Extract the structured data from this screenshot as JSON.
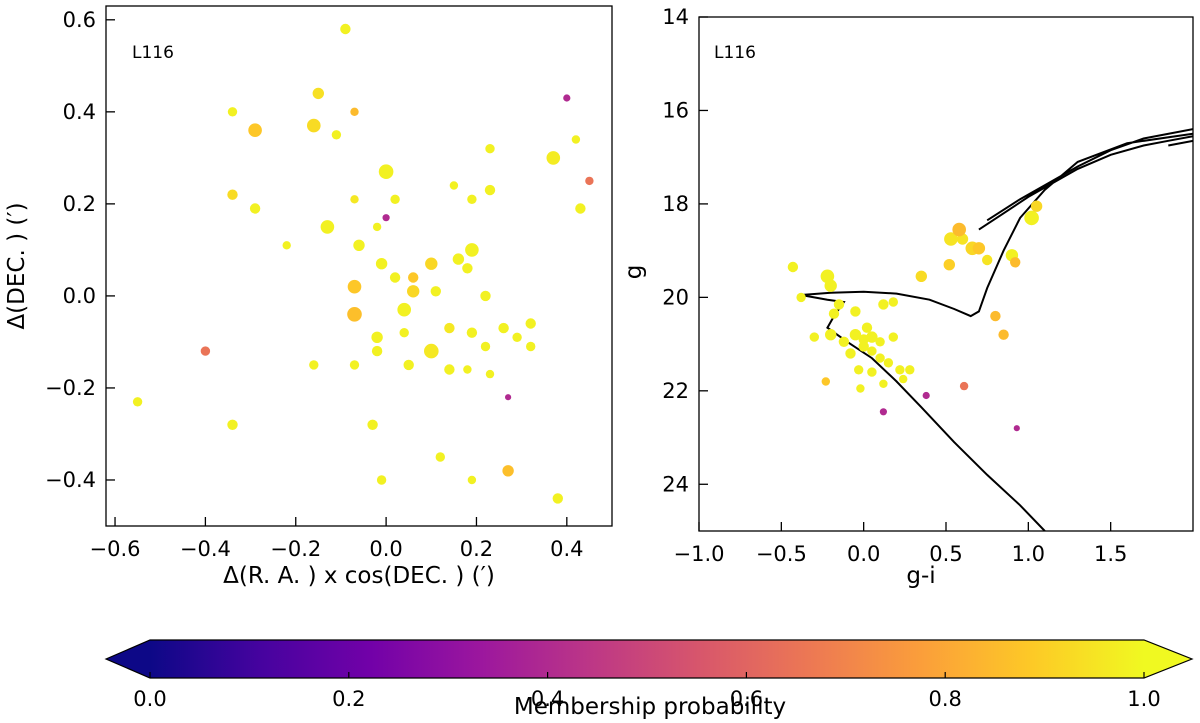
{
  "chart_data": [
    {
      "type": "scatter",
      "panel_label": "L116",
      "xlabel": "Δ(R. A. ) x cos(DEC. ) (′)",
      "ylabel": "Δ(DEC. ) (′)",
      "xlim": [
        -0.62,
        0.5
      ],
      "ylim": [
        -0.5,
        0.63
      ],
      "xticks": [
        -0.6,
        -0.4,
        -0.2,
        0.0,
        0.2,
        0.4
      ],
      "xtick_labels": [
        "−0.6",
        "−0.4",
        "−0.2",
        "0.0",
        "0.2",
        "0.4"
      ],
      "yticks": [
        -0.4,
        -0.2,
        0.0,
        0.2,
        0.4,
        0.6
      ],
      "ytick_labels": [
        "−0.4",
        "−0.2",
        "0.0",
        "0.2",
        "0.4",
        "0.6"
      ],
      "color_encodes": "membership probability",
      "points": [
        {
          "x": -0.09,
          "y": 0.58,
          "p": 0.98,
          "s": 1.0
        },
        {
          "x": -0.34,
          "y": 0.4,
          "p": 0.98,
          "s": 0.9
        },
        {
          "x": -0.29,
          "y": 0.36,
          "p": 0.88,
          "s": 1.3
        },
        {
          "x": -0.15,
          "y": 0.44,
          "p": 0.94,
          "s": 1.1
        },
        {
          "x": -0.16,
          "y": 0.37,
          "p": 0.93,
          "s": 1.3
        },
        {
          "x": -0.07,
          "y": 0.4,
          "p": 0.85,
          "s": 0.8
        },
        {
          "x": -0.11,
          "y": 0.35,
          "p": 0.98,
          "s": 0.9
        },
        {
          "x": 0.4,
          "y": 0.43,
          "p": 0.4,
          "s": 0.7
        },
        {
          "x": 0.42,
          "y": 0.34,
          "p": 0.98,
          "s": 0.8
        },
        {
          "x": 0.45,
          "y": 0.25,
          "p": 0.65,
          "s": 0.8
        },
        {
          "x": 0.37,
          "y": 0.3,
          "p": 0.97,
          "s": 1.3
        },
        {
          "x": 0.43,
          "y": 0.19,
          "p": 0.98,
          "s": 1.0
        },
        {
          "x": 0.23,
          "y": 0.32,
          "p": 0.98,
          "s": 0.9
        },
        {
          "x": 0.23,
          "y": 0.23,
          "p": 0.98,
          "s": 1.0
        },
        {
          "x": 0.0,
          "y": 0.27,
          "p": 0.98,
          "s": 1.4
        },
        {
          "x": -0.34,
          "y": 0.22,
          "p": 0.93,
          "s": 1.0
        },
        {
          "x": -0.29,
          "y": 0.19,
          "p": 0.98,
          "s": 1.0
        },
        {
          "x": -0.07,
          "y": 0.21,
          "p": 0.96,
          "s": 0.8
        },
        {
          "x": 0.02,
          "y": 0.21,
          "p": 0.98,
          "s": 0.9
        },
        {
          "x": 0.15,
          "y": 0.24,
          "p": 0.98,
          "s": 0.8
        },
        {
          "x": 0.19,
          "y": 0.21,
          "p": 0.98,
          "s": 0.9
        },
        {
          "x": 0.0,
          "y": 0.17,
          "p": 0.4,
          "s": 0.7
        },
        {
          "x": -0.02,
          "y": 0.15,
          "p": 0.98,
          "s": 0.8
        },
        {
          "x": -0.13,
          "y": 0.15,
          "p": 0.98,
          "s": 1.3
        },
        {
          "x": -0.06,
          "y": 0.11,
          "p": 0.98,
          "s": 1.1
        },
        {
          "x": -0.22,
          "y": 0.11,
          "p": 0.98,
          "s": 0.8
        },
        {
          "x": 0.19,
          "y": 0.1,
          "p": 0.98,
          "s": 1.3
        },
        {
          "x": 0.16,
          "y": 0.08,
          "p": 0.98,
          "s": 1.1
        },
        {
          "x": -0.01,
          "y": 0.07,
          "p": 0.98,
          "s": 1.1
        },
        {
          "x": 0.1,
          "y": 0.07,
          "p": 0.92,
          "s": 1.2
        },
        {
          "x": 0.02,
          "y": 0.04,
          "p": 0.98,
          "s": 1.0
        },
        {
          "x": 0.06,
          "y": 0.04,
          "p": 0.88,
          "s": 1.0
        },
        {
          "x": 0.18,
          "y": 0.06,
          "p": 0.98,
          "s": 1.0
        },
        {
          "x": -0.07,
          "y": 0.02,
          "p": 0.88,
          "s": 1.3
        },
        {
          "x": 0.06,
          "y": 0.01,
          "p": 0.92,
          "s": 1.2
        },
        {
          "x": 0.11,
          "y": 0.01,
          "p": 0.98,
          "s": 1.0
        },
        {
          "x": 0.22,
          "y": 0.0,
          "p": 0.98,
          "s": 1.0
        },
        {
          "x": -0.07,
          "y": -0.04,
          "p": 0.86,
          "s": 1.4
        },
        {
          "x": 0.04,
          "y": -0.03,
          "p": 0.98,
          "s": 1.3
        },
        {
          "x": 0.14,
          "y": -0.07,
          "p": 0.96,
          "s": 1.0
        },
        {
          "x": 0.26,
          "y": -0.07,
          "p": 0.98,
          "s": 1.0
        },
        {
          "x": 0.32,
          "y": -0.06,
          "p": 0.98,
          "s": 1.0
        },
        {
          "x": -0.02,
          "y": -0.09,
          "p": 0.98,
          "s": 1.1
        },
        {
          "x": 0.04,
          "y": -0.08,
          "p": 0.98,
          "s": 0.9
        },
        {
          "x": 0.19,
          "y": -0.08,
          "p": 0.98,
          "s": 1.0
        },
        {
          "x": 0.29,
          "y": -0.09,
          "p": 0.98,
          "s": 0.9
        },
        {
          "x": 0.22,
          "y": -0.11,
          "p": 0.98,
          "s": 0.9
        },
        {
          "x": 0.32,
          "y": -0.11,
          "p": 0.98,
          "s": 0.9
        },
        {
          "x": -0.02,
          "y": -0.12,
          "p": 0.98,
          "s": 1.0
        },
        {
          "x": 0.1,
          "y": -0.12,
          "p": 0.96,
          "s": 1.4
        },
        {
          "x": -0.4,
          "y": -0.12,
          "p": 0.65,
          "s": 0.9
        },
        {
          "x": -0.16,
          "y": -0.15,
          "p": 0.98,
          "s": 0.9
        },
        {
          "x": -0.07,
          "y": -0.15,
          "p": 0.98,
          "s": 0.9
        },
        {
          "x": 0.05,
          "y": -0.15,
          "p": 0.98,
          "s": 1.0
        },
        {
          "x": 0.14,
          "y": -0.16,
          "p": 0.98,
          "s": 1.0
        },
        {
          "x": 0.18,
          "y": -0.16,
          "p": 0.98,
          "s": 0.8
        },
        {
          "x": 0.23,
          "y": -0.17,
          "p": 0.98,
          "s": 0.8
        },
        {
          "x": 0.27,
          "y": -0.22,
          "p": 0.4,
          "s": 0.6
        },
        {
          "x": -0.55,
          "y": -0.23,
          "p": 0.98,
          "s": 0.9
        },
        {
          "x": -0.34,
          "y": -0.28,
          "p": 0.98,
          "s": 1.0
        },
        {
          "x": -0.03,
          "y": -0.28,
          "p": 0.98,
          "s": 1.0
        },
        {
          "x": 0.12,
          "y": -0.35,
          "p": 0.98,
          "s": 0.9
        },
        {
          "x": 0.27,
          "y": -0.38,
          "p": 0.86,
          "s": 1.1
        },
        {
          "x": -0.01,
          "y": -0.4,
          "p": 0.98,
          "s": 0.9
        },
        {
          "x": 0.19,
          "y": -0.4,
          "p": 0.98,
          "s": 0.8
        },
        {
          "x": 0.38,
          "y": -0.44,
          "p": 0.98,
          "s": 1.0
        }
      ]
    },
    {
      "type": "scatter",
      "panel_label": "L116",
      "xlabel": "g-i",
      "ylabel": "g",
      "xlim": [
        -1.0,
        2.0
      ],
      "ylim": [
        25,
        14
      ],
      "y_inverted": true,
      "xticks": [
        -1.0,
        -0.5,
        0.0,
        0.5,
        1.0,
        1.5
      ],
      "xtick_labels": [
        "−1.0",
        "−0.5",
        "0.0",
        "0.5",
        "1.0",
        "1.5"
      ],
      "yticks": [
        14,
        16,
        18,
        20,
        22,
        24
      ],
      "ytick_labels": [
        "14",
        "16",
        "18",
        "20",
        "22",
        "24"
      ],
      "color_encodes": "membership probability",
      "isochrone": [
        [
          0.7,
          18.55
        ],
        [
          0.85,
          18.2
        ],
        [
          1.0,
          17.85
        ],
        [
          1.15,
          17.55
        ],
        [
          1.3,
          17.25
        ],
        [
          1.5,
          16.95
        ],
        [
          1.7,
          16.75
        ],
        [
          1.85,
          16.65
        ],
        [
          2.0,
          16.55
        ],
        null,
        [
          0.75,
          18.35
        ],
        [
          0.95,
          17.9
        ],
        [
          1.1,
          17.6
        ],
        [
          1.3,
          17.2
        ],
        [
          1.5,
          16.85
        ],
        [
          1.7,
          16.6
        ],
        [
          2.0,
          16.4
        ],
        null,
        [
          -0.38,
          19.95
        ],
        [
          -0.2,
          19.9
        ],
        [
          0.0,
          19.88
        ],
        [
          0.2,
          19.92
        ],
        [
          0.4,
          20.05
        ],
        [
          0.55,
          20.25
        ],
        [
          0.65,
          20.4
        ],
        [
          0.7,
          20.3
        ],
        [
          0.75,
          19.8
        ],
        [
          0.85,
          19.0
        ],
        [
          0.95,
          18.3
        ],
        [
          1.1,
          17.7
        ],
        [
          1.3,
          17.1
        ],
        [
          1.6,
          16.7
        ],
        [
          2.0,
          16.5
        ],
        null,
        [
          -0.38,
          19.95
        ],
        [
          -0.22,
          20.05
        ],
        [
          -0.12,
          20.1
        ],
        [
          -0.18,
          20.4
        ],
        [
          -0.22,
          20.65
        ],
        [
          -0.1,
          20.95
        ],
        [
          0.05,
          21.3
        ],
        [
          0.2,
          21.8
        ],
        [
          0.35,
          22.35
        ],
        [
          0.55,
          23.1
        ],
        [
          0.75,
          23.8
        ],
        [
          0.95,
          24.45
        ],
        [
          1.1,
          25.0
        ],
        null,
        [
          1.85,
          16.75
        ],
        [
          2.0,
          16.65
        ]
      ],
      "points": [
        {
          "x": -0.43,
          "y": 19.35,
          "p": 0.98,
          "s": 1.0
        },
        {
          "x": -0.38,
          "y": 20.0,
          "p": 0.98,
          "s": 0.9
        },
        {
          "x": -0.22,
          "y": 19.55,
          "p": 0.98,
          "s": 1.3
        },
        {
          "x": -0.2,
          "y": 19.75,
          "p": 0.98,
          "s": 1.2
        },
        {
          "x": -0.15,
          "y": 20.15,
          "p": 0.98,
          "s": 1.0
        },
        {
          "x": -0.18,
          "y": 20.35,
          "p": 0.98,
          "s": 1.0
        },
        {
          "x": -0.05,
          "y": 20.3,
          "p": 0.98,
          "s": 1.0
        },
        {
          "x": -0.3,
          "y": 20.85,
          "p": 0.98,
          "s": 0.9
        },
        {
          "x": -0.2,
          "y": 20.8,
          "p": 0.98,
          "s": 1.1
        },
        {
          "x": -0.12,
          "y": 20.95,
          "p": 0.98,
          "s": 1.0
        },
        {
          "x": -0.05,
          "y": 20.8,
          "p": 0.98,
          "s": 1.1
        },
        {
          "x": 0.0,
          "y": 20.9,
          "p": 0.98,
          "s": 1.0
        },
        {
          "x": 0.05,
          "y": 20.85,
          "p": 0.98,
          "s": 1.1
        },
        {
          "x": 0.1,
          "y": 20.95,
          "p": 0.98,
          "s": 0.9
        },
        {
          "x": 0.18,
          "y": 20.85,
          "p": 0.98,
          "s": 0.9
        },
        {
          "x": 0.12,
          "y": 20.15,
          "p": 0.98,
          "s": 1.0
        },
        {
          "x": 0.18,
          "y": 20.1,
          "p": 0.98,
          "s": 0.9
        },
        {
          "x": 0.02,
          "y": 20.65,
          "p": 0.98,
          "s": 1.0
        },
        {
          "x": -0.08,
          "y": 21.2,
          "p": 0.98,
          "s": 1.0
        },
        {
          "x": 0.0,
          "y": 21.05,
          "p": 0.98,
          "s": 1.0
        },
        {
          "x": 0.05,
          "y": 21.15,
          "p": 0.98,
          "s": 0.9
        },
        {
          "x": 0.1,
          "y": 21.3,
          "p": 0.98,
          "s": 0.9
        },
        {
          "x": 0.15,
          "y": 21.4,
          "p": 0.98,
          "s": 0.9
        },
        {
          "x": -0.03,
          "y": 21.55,
          "p": 0.98,
          "s": 0.9
        },
        {
          "x": 0.05,
          "y": 21.6,
          "p": 0.98,
          "s": 0.9
        },
        {
          "x": 0.22,
          "y": 21.55,
          "p": 0.98,
          "s": 0.9
        },
        {
          "x": 0.28,
          "y": 21.55,
          "p": 0.98,
          "s": 0.9
        },
        {
          "x": 0.24,
          "y": 21.75,
          "p": 0.98,
          "s": 0.8
        },
        {
          "x": 0.12,
          "y": 21.85,
          "p": 0.98,
          "s": 0.8
        },
        {
          "x": -0.02,
          "y": 21.95,
          "p": 0.98,
          "s": 0.8
        },
        {
          "x": -0.23,
          "y": 21.8,
          "p": 0.88,
          "s": 0.8
        },
        {
          "x": 0.12,
          "y": 22.45,
          "p": 0.4,
          "s": 0.7
        },
        {
          "x": 0.38,
          "y": 22.1,
          "p": 0.4,
          "s": 0.7
        },
        {
          "x": 0.61,
          "y": 21.9,
          "p": 0.65,
          "s": 0.8
        },
        {
          "x": 0.93,
          "y": 22.8,
          "p": 0.4,
          "s": 0.6
        },
        {
          "x": 0.35,
          "y": 19.55,
          "p": 0.93,
          "s": 1.1
        },
        {
          "x": 0.52,
          "y": 19.3,
          "p": 0.9,
          "s": 1.1
        },
        {
          "x": 0.53,
          "y": 18.75,
          "p": 0.95,
          "s": 1.3
        },
        {
          "x": 0.58,
          "y": 18.55,
          "p": 0.85,
          "s": 1.3
        },
        {
          "x": 0.6,
          "y": 18.75,
          "p": 0.95,
          "s": 1.1
        },
        {
          "x": 0.66,
          "y": 18.95,
          "p": 0.92,
          "s": 1.3
        },
        {
          "x": 0.7,
          "y": 18.95,
          "p": 0.88,
          "s": 1.2
        },
        {
          "x": 0.75,
          "y": 19.2,
          "p": 0.95,
          "s": 1.0
        },
        {
          "x": 0.8,
          "y": 20.4,
          "p": 0.85,
          "s": 1.0
        },
        {
          "x": 0.85,
          "y": 20.8,
          "p": 0.85,
          "s": 1.0
        },
        {
          "x": 0.9,
          "y": 19.1,
          "p": 0.98,
          "s": 1.2
        },
        {
          "x": 0.92,
          "y": 19.25,
          "p": 0.85,
          "s": 1.0
        },
        {
          "x": 1.02,
          "y": 18.3,
          "p": 0.98,
          "s": 1.4
        },
        {
          "x": 1.05,
          "y": 18.05,
          "p": 0.92,
          "s": 1.1
        }
      ]
    }
  ],
  "colorbar": {
    "label": "Membership probability",
    "range": [
      0.0,
      1.0
    ],
    "ticks": [
      0.0,
      0.2,
      0.4,
      0.6,
      0.8,
      1.0
    ],
    "tick_labels": [
      "0.0",
      "0.2",
      "0.4",
      "0.6",
      "0.8",
      "1.0"
    ],
    "colormap": "plasma",
    "extend": "both",
    "stops": [
      "#0d0887",
      "#46039f",
      "#7201a8",
      "#9c179e",
      "#bd3786",
      "#d8576b",
      "#ed7953",
      "#fb9f3a",
      "#fdca26",
      "#f0f921"
    ]
  }
}
